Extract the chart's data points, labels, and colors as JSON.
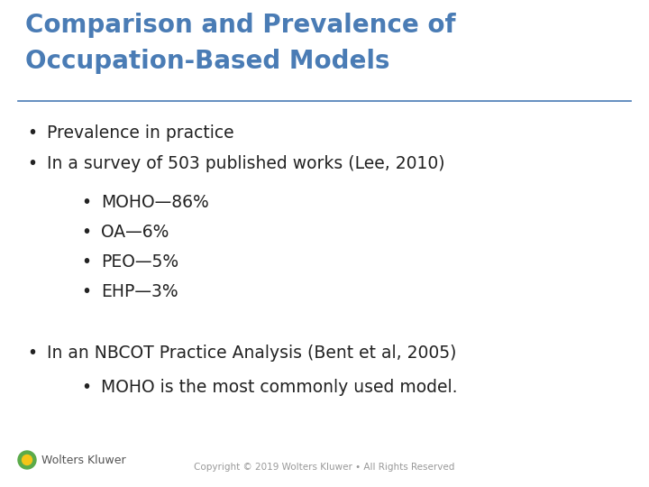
{
  "title_line1": "Comparison and Prevalence of",
  "title_line2": "Occupation-Based Models",
  "title_color": "#4A7CB5",
  "title_fontsize": 20,
  "bg_color": "#FFFFFF",
  "divider_color": "#4A7CB5",
  "body_color": "#222222",
  "body_fontsize": 13.5,
  "bullet1": "Prevalence in practice",
  "bullet2": "In a survey of 503 published works (Lee, 2010)",
  "sub_bullets": [
    "MOHO—86%",
    "OA—6%",
    "PEO—5%",
    "EHP—3%"
  ],
  "bullet3": "In an NBCOT Practice Analysis (Bent et al, 2005)",
  "sub_bullet3": "MOHO is the most commonly used model.",
  "footer_copyright": "Copyright © 2019 Wolters Kluwer • All Rights Reserved",
  "footer_logo_text": "Wolters Kluwer",
  "footer_color": "#999999",
  "footer_fontsize": 7.5
}
